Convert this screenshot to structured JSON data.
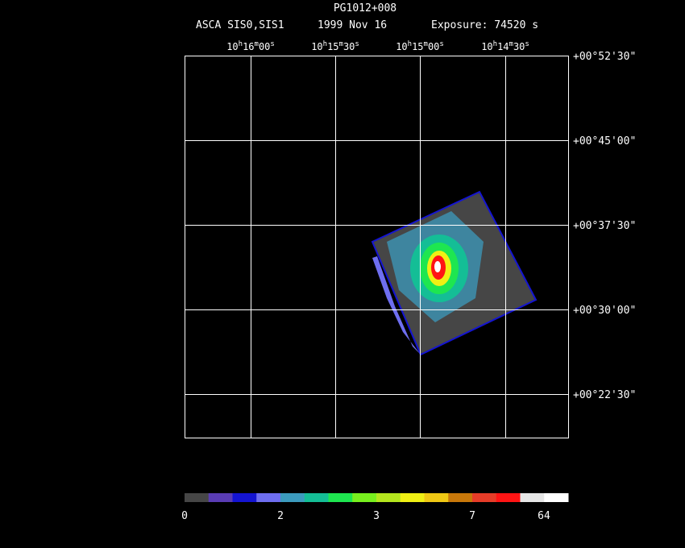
{
  "header": {
    "title": "PG1012+008",
    "instrument": "ASCA SIS0,SIS1",
    "date": "1999 Nov 16",
    "exposure": "Exposure: 74520 s"
  },
  "ra_labels": [
    [
      "10",
      "h",
      "16",
      "m",
      "00",
      "s"
    ],
    [
      "10",
      "h",
      "15",
      "m",
      "30",
      "s"
    ],
    [
      "10",
      "h",
      "15",
      "m",
      "00",
      "s"
    ],
    [
      "10",
      "h",
      "14",
      "m",
      "30",
      "s"
    ]
  ],
  "dec_labels": [
    "+00°52'30\"",
    "+00°45'00\"",
    "+00°37'30\"",
    "+00°30'00\"",
    "+00°22'30\""
  ],
  "colorbar": {
    "colors": [
      "#464646",
      "#5a3cb4",
      "#1414d2",
      "#6e6ef0",
      "#3c9bbe",
      "#14be96",
      "#1ee650",
      "#78f01e",
      "#b4e61e",
      "#f0f014",
      "#f0c814",
      "#c8780a",
      "#e63c28",
      "#ff1414",
      "#e6e6e6",
      "#ffffff"
    ],
    "labels": [
      "0",
      "2",
      "3",
      "7",
      "64"
    ]
  }
}
